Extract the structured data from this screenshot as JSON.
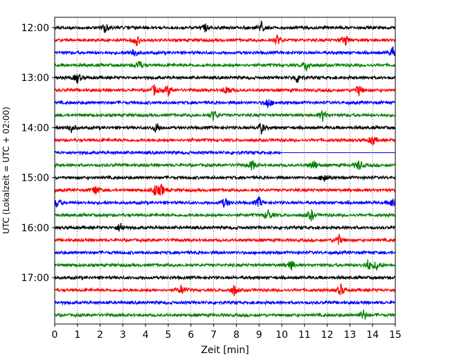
{
  "chart_data": {
    "type": "line",
    "xlabel": "Zeit  [min]",
    "ylabel": "UTC (Lokalzeit = UTC + 02:00)",
    "xlim": [
      0,
      15
    ],
    "x_ticks": [
      "0",
      "1",
      "2",
      "3",
      "4",
      "5",
      "6",
      "7",
      "8",
      "9",
      "10",
      "11",
      "12",
      "13",
      "14",
      "15"
    ],
    "y_ticks": [
      "12:00",
      "13:00",
      "14:00",
      "15:00",
      "16:00",
      "17:00"
    ],
    "grid": "vertical dotted",
    "trace_colors": [
      "#000000",
      "#ff0000",
      "#0000ff",
      "#008000"
    ],
    "traces": [
      {
        "start": "12:00",
        "events": [
          2.2,
          6.6,
          9.1
        ]
      },
      {
        "start": "12:15",
        "events": [
          3.6,
          9.8,
          12.8
        ]
      },
      {
        "start": "12:30",
        "events": [
          3.5,
          14.9
        ]
      },
      {
        "start": "12:45",
        "events": [
          3.7,
          11.1
        ]
      },
      {
        "start": "13:00",
        "events": [
          1.0,
          10.7
        ]
      },
      {
        "start": "13:15",
        "events": [
          5.0,
          4.4,
          7.6,
          13.4
        ]
      },
      {
        "start": "13:30",
        "events": [
          9.4
        ]
      },
      {
        "start": "13:45",
        "events": [
          11.8,
          7.0
        ]
      },
      {
        "start": "14:00",
        "events": [
          0.7,
          4.5,
          9.1
        ]
      },
      {
        "start": "14:15",
        "events": [
          14.0
        ]
      },
      {
        "start": "14:30",
        "events": [],
        "end": 10.0
      },
      {
        "start": "14:45",
        "events": [
          8.7,
          11.4,
          13.4
        ]
      },
      {
        "start": "15:00",
        "events": [
          11.9
        ]
      },
      {
        "start": "15:15",
        "events": [
          1.8,
          4.4,
          4.7
        ]
      },
      {
        "start": "15:30",
        "events": [
          0.1,
          7.5,
          9.0,
          14.9
        ]
      },
      {
        "start": "15:45",
        "events": [
          9.4,
          11.3
        ]
      },
      {
        "start": "16:00",
        "events": [
          2.9
        ]
      },
      {
        "start": "16:15",
        "events": [
          12.5
        ]
      },
      {
        "start": "16:30",
        "events": []
      },
      {
        "start": "16:45",
        "events": [
          13.8,
          14.2,
          10.4
        ]
      },
      {
        "start": "17:00",
        "events": []
      },
      {
        "start": "17:15",
        "events": [
          7.9,
          12.6,
          5.6
        ]
      },
      {
        "start": "17:30",
        "events": []
      },
      {
        "start": "17:45",
        "events": [
          13.6
        ]
      }
    ]
  }
}
